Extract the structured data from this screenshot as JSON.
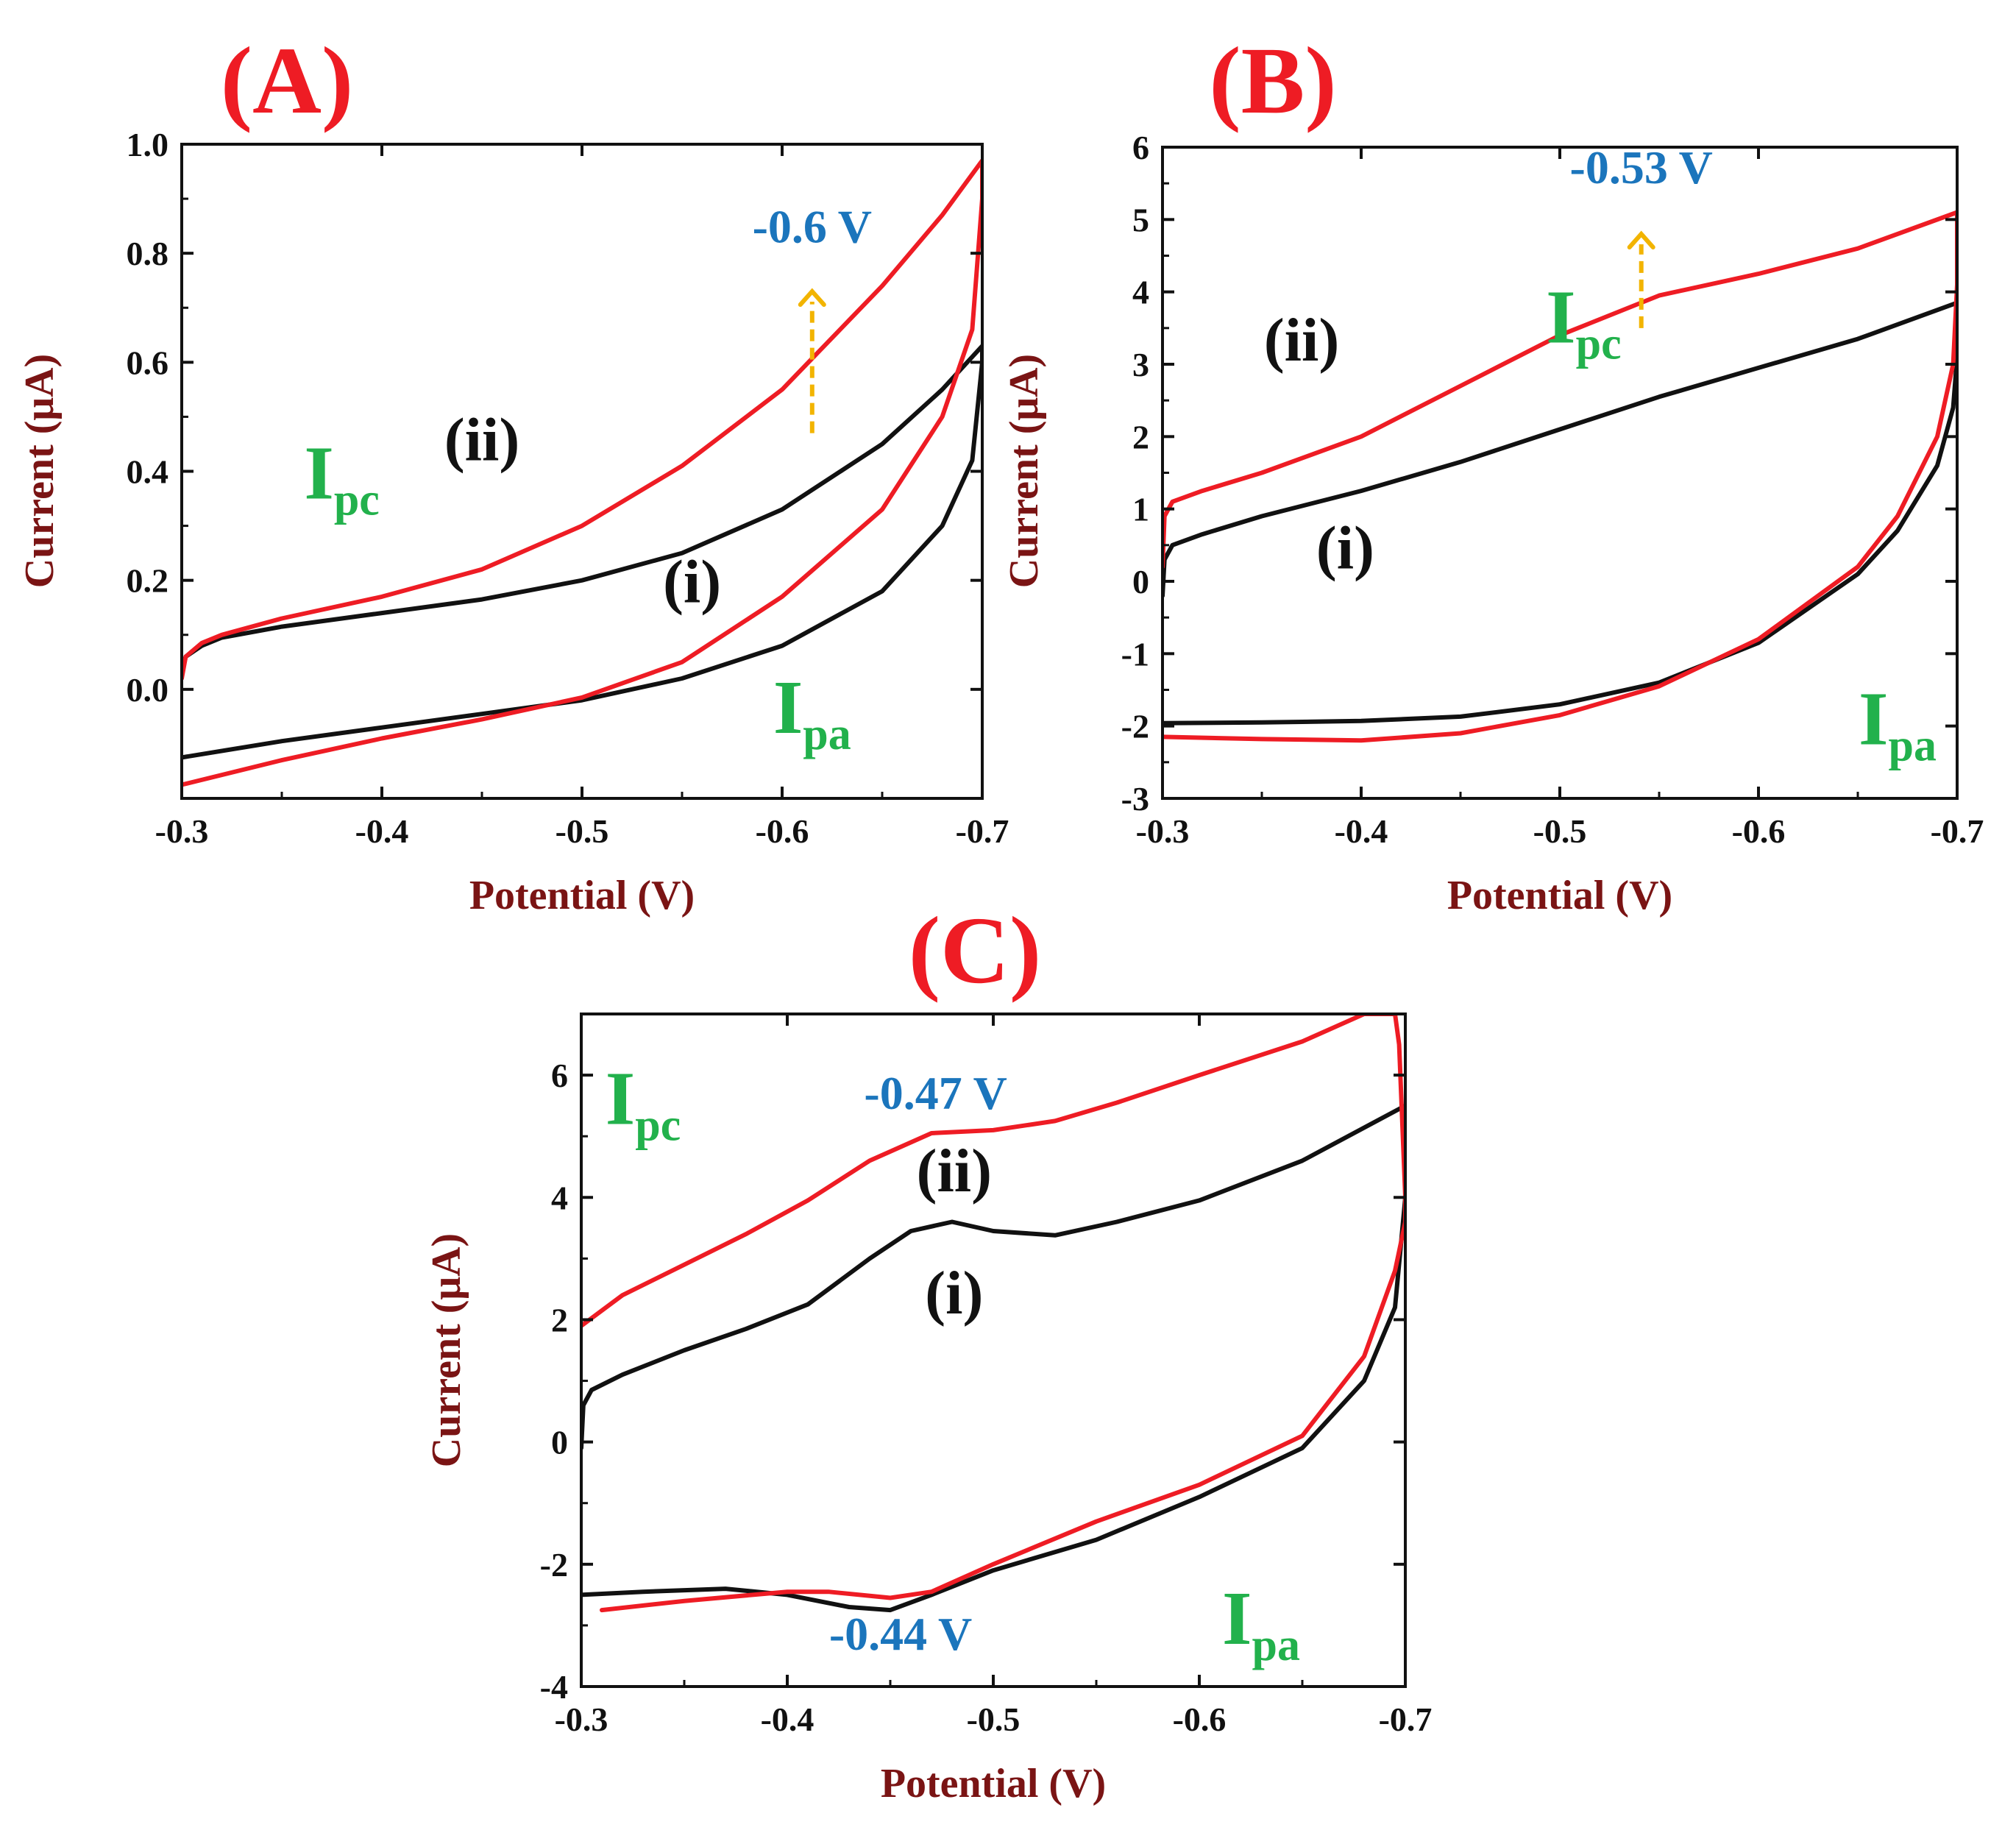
{
  "colors": {
    "panel_label": "#ee1c24",
    "axis_title": "#7a1414",
    "annotation_green": "#22b14c",
    "annotation_blue": "#1b75bc",
    "arrow": "#f2b400",
    "curve_i": "#111111",
    "curve_ii": "#ee1c24",
    "frame": "#111111"
  },
  "chart_data": [
    {
      "type": "line",
      "panel_label": "(A)",
      "xlabel": "Potential (V)",
      "ylabel": "Current (μA)",
      "xlim": [
        -0.3,
        -0.7
      ],
      "ylim": [
        -0.2,
        1.0
      ],
      "x_ticks": [
        -0.3,
        -0.4,
        -0.5,
        -0.6,
        -0.7
      ],
      "x_tick_labels": [
        "-0.3",
        "-0.4",
        "-0.5",
        "-0.6",
        "-0.7"
      ],
      "y_ticks": [
        0.0,
        0.2,
        0.4,
        0.6,
        0.8,
        1.0
      ],
      "y_tick_labels": [
        "0.0",
        "0.2",
        "0.4",
        "0.6",
        "0.8",
        "1.0"
      ],
      "series": [
        {
          "name": "(i)",
          "color_key": "curve_i",
          "x": [
            -0.3,
            -0.302,
            -0.31,
            -0.32,
            -0.35,
            -0.4,
            -0.45,
            -0.5,
            -0.55,
            -0.6,
            -0.65,
            -0.68,
            -0.7,
            -0.7,
            -0.695,
            -0.68,
            -0.65,
            -0.6,
            -0.55,
            -0.5,
            -0.45,
            -0.4,
            -0.35,
            -0.3
          ],
          "y": [
            0.03,
            0.06,
            0.08,
            0.095,
            0.115,
            0.14,
            0.165,
            0.2,
            0.25,
            0.33,
            0.45,
            0.55,
            0.63,
            0.6,
            0.42,
            0.3,
            0.18,
            0.08,
            0.02,
            -0.02,
            -0.045,
            -0.07,
            -0.095,
            -0.125
          ]
        },
        {
          "name": "(ii)",
          "color_key": "curve_ii",
          "x": [
            -0.3,
            -0.302,
            -0.31,
            -0.32,
            -0.35,
            -0.4,
            -0.45,
            -0.5,
            -0.55,
            -0.6,
            -0.65,
            -0.68,
            -0.7,
            -0.7,
            -0.695,
            -0.68,
            -0.65,
            -0.6,
            -0.55,
            -0.5,
            -0.45,
            -0.4,
            -0.35,
            -0.3
          ],
          "y": [
            0.02,
            0.06,
            0.085,
            0.1,
            0.13,
            0.17,
            0.22,
            0.3,
            0.41,
            0.55,
            0.74,
            0.87,
            0.97,
            0.9,
            0.66,
            0.5,
            0.33,
            0.17,
            0.05,
            -0.015,
            -0.055,
            -0.09,
            -0.13,
            -0.175
          ]
        }
      ],
      "annotations": [
        {
          "text": "(ii)",
          "x": -0.45,
          "y": 0.42,
          "kind": "label"
        },
        {
          "text": "(i)",
          "x": -0.555,
          "y": 0.16,
          "kind": "label"
        },
        {
          "text": "-0.6 V",
          "x": -0.615,
          "y": 0.82,
          "kind": "potential"
        },
        {
          "kind": "arrow",
          "x": -0.615,
          "y_from": 0.47,
          "y_to": 0.73
        }
      ],
      "ipc": {
        "main": "I",
        "sub": "pc",
        "x": -0.38,
        "y": 0.35
      },
      "ipa": {
        "main": "I",
        "sub": "pa",
        "x": -0.615,
        "y": -0.08
      }
    },
    {
      "type": "line",
      "panel_label": "(B)",
      "xlabel": "Potential (V)",
      "ylabel": "Current (μA)",
      "xlim": [
        -0.3,
        -0.7
      ],
      "ylim": [
        -3,
        6
      ],
      "x_ticks": [
        -0.3,
        -0.4,
        -0.5,
        -0.6,
        -0.7
      ],
      "x_tick_labels": [
        "-0.3",
        "-0.4",
        "-0.5",
        "-0.6",
        "-0.7"
      ],
      "y_ticks": [
        -3,
        -2,
        -1,
        0,
        1,
        2,
        3,
        4,
        5,
        6
      ],
      "y_tick_labels": [
        "-3",
        "-2",
        "-1",
        "0",
        "1",
        "2",
        "3",
        "4",
        "5",
        "6"
      ],
      "series": [
        {
          "name": "(i)",
          "color_key": "curve_i",
          "x": [
            -0.3,
            -0.301,
            -0.305,
            -0.32,
            -0.35,
            -0.4,
            -0.45,
            -0.5,
            -0.55,
            -0.6,
            -0.65,
            -0.7,
            -0.7,
            -0.698,
            -0.69,
            -0.67,
            -0.65,
            -0.6,
            -0.55,
            -0.5,
            -0.45,
            -0.4,
            -0.35,
            -0.3
          ],
          "y": [
            -0.2,
            0.3,
            0.5,
            0.65,
            0.9,
            1.25,
            1.65,
            2.1,
            2.55,
            2.95,
            3.35,
            3.85,
            3.1,
            2.4,
            1.6,
            0.7,
            0.1,
            -0.85,
            -1.4,
            -1.7,
            -1.87,
            -1.93,
            -1.95,
            -1.96
          ]
        },
        {
          "name": "(ii)",
          "color_key": "curve_ii",
          "x": [
            -0.3,
            -0.301,
            -0.305,
            -0.32,
            -0.35,
            -0.4,
            -0.45,
            -0.5,
            -0.55,
            -0.6,
            -0.65,
            -0.7,
            -0.7,
            -0.698,
            -0.69,
            -0.67,
            -0.65,
            -0.6,
            -0.55,
            -0.5,
            -0.45,
            -0.4,
            -0.35,
            -0.3
          ],
          "y": [
            0.2,
            0.9,
            1.1,
            1.25,
            1.5,
            2.0,
            2.7,
            3.4,
            3.95,
            4.25,
            4.6,
            5.1,
            4.1,
            3.0,
            2.0,
            0.9,
            0.2,
            -0.8,
            -1.45,
            -1.85,
            -2.1,
            -2.2,
            -2.18,
            -2.15
          ]
        }
      ],
      "annotations": [
        {
          "text": "(ii)",
          "x": -0.37,
          "y": 3.05,
          "kind": "label"
        },
        {
          "text": "(i)",
          "x": -0.392,
          "y": 0.18,
          "kind": "label"
        },
        {
          "text": "-0.53 V",
          "x": -0.541,
          "y": 5.5,
          "kind": "potential"
        },
        {
          "kind": "arrow",
          "x": -0.541,
          "y_from": 3.5,
          "y_to": 4.8
        }
      ],
      "ipc": {
        "main": "I",
        "sub": "pc",
        "x": -0.512,
        "y": 3.3
      },
      "ipa": {
        "main": "I",
        "sub": "pa",
        "x": -0.67,
        "y": -2.25
      }
    },
    {
      "type": "line",
      "panel_label": "(C)",
      "xlabel": "Potential (V)",
      "ylabel": "Current (μA)",
      "xlim": [
        -0.3,
        -0.7
      ],
      "ylim": [
        -4,
        7
      ],
      "x_ticks": [
        -0.3,
        -0.4,
        -0.5,
        -0.6,
        -0.7
      ],
      "x_tick_labels": [
        "-0.3",
        "-0.4",
        "-0.5",
        "-0.6",
        "-0.7"
      ],
      "y_ticks": [
        -4,
        -2,
        0,
        2,
        4,
        6
      ],
      "y_tick_labels": [
        "-4",
        "-2",
        "0",
        "2",
        "4",
        "6"
      ],
      "series": [
        {
          "name": "(i)",
          "color_key": "curve_i",
          "x": [
            -0.3,
            -0.301,
            -0.305,
            -0.32,
            -0.35,
            -0.38,
            -0.41,
            -0.44,
            -0.46,
            -0.48,
            -0.5,
            -0.53,
            -0.56,
            -0.6,
            -0.65,
            -0.7,
            -0.7,
            -0.695,
            -0.68,
            -0.65,
            -0.6,
            -0.55,
            -0.5,
            -0.47,
            -0.45,
            -0.43,
            -0.4,
            -0.37,
            -0.33,
            -0.3
          ],
          "y": [
            -0.1,
            0.6,
            0.85,
            1.1,
            1.5,
            1.85,
            2.25,
            3.0,
            3.45,
            3.6,
            3.45,
            3.38,
            3.6,
            3.95,
            4.6,
            5.5,
            4.0,
            2.2,
            1.0,
            -0.1,
            -0.9,
            -1.6,
            -2.1,
            -2.5,
            -2.75,
            -2.7,
            -2.5,
            -2.4,
            -2.45,
            -2.5
          ]
        },
        {
          "name": "(ii)",
          "color_key": "curve_ii",
          "x": [
            -0.3,
            -0.32,
            -0.35,
            -0.38,
            -0.41,
            -0.44,
            -0.47,
            -0.5,
            -0.53,
            -0.56,
            -0.6,
            -0.65,
            -0.68,
            -0.69,
            -0.695,
            -0.697,
            -0.7,
            -0.7,
            -0.695,
            -0.68,
            -0.65,
            -0.6,
            -0.55,
            -0.5,
            -0.47,
            -0.45,
            -0.42,
            -0.4,
            -0.35,
            -0.31
          ],
          "y": [
            1.9,
            2.4,
            2.9,
            3.4,
            3.95,
            4.6,
            5.05,
            5.1,
            5.25,
            5.55,
            6.0,
            6.55,
            7.0,
            7.0,
            7.0,
            6.5,
            4.0,
            3.6,
            2.8,
            1.4,
            0.1,
            -0.7,
            -1.3,
            -2.0,
            -2.45,
            -2.55,
            -2.45,
            -2.45,
            -2.6,
            -2.75
          ]
        }
      ],
      "annotations": [
        {
          "text": "(ii)",
          "x": -0.481,
          "y": 4.1,
          "kind": "label"
        },
        {
          "text": "(i)",
          "x": -0.481,
          "y": 2.1,
          "kind": "label"
        },
        {
          "text": "-0.47 V",
          "x": -0.472,
          "y": 5.45,
          "kind": "potential"
        },
        {
          "text": "-0.44 V",
          "x": -0.455,
          "y": -3.4,
          "kind": "potential"
        }
      ],
      "ipc": {
        "main": "I",
        "sub": "pc",
        "x": -0.33,
        "y": 5.2
      },
      "ipa": {
        "main": "I",
        "sub": "pa",
        "x": -0.63,
        "y": -3.3
      }
    }
  ]
}
